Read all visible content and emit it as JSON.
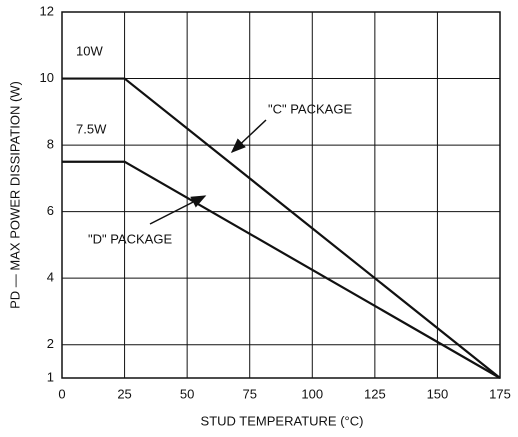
{
  "chart_data": {
    "type": "line",
    "x_label": "STUD TEMPERATURE (°C)",
    "y_label": "PD — MAX POWER DISSIPATION (W)",
    "x": [
      0,
      25,
      175
    ],
    "series": [
      {
        "color": "#111111",
        "values": [
          10,
          10,
          1
        ]
      },
      {
        "color": "#111111",
        "values": [
          7.5,
          7.5,
          1
        ]
      }
    ],
    "xlim": [
      0,
      175
    ],
    "xticks": [
      0,
      25,
      50,
      75,
      100,
      125,
      150,
      175
    ],
    "ylim": [
      1,
      12
    ],
    "yticks": [
      1,
      2,
      4,
      6,
      8,
      10,
      12
    ],
    "grid": true,
    "annotations": [
      "10W",
      "7.5W",
      "\"C\" PACKAGE",
      "\"D\" PACKAGE"
    ]
  }
}
